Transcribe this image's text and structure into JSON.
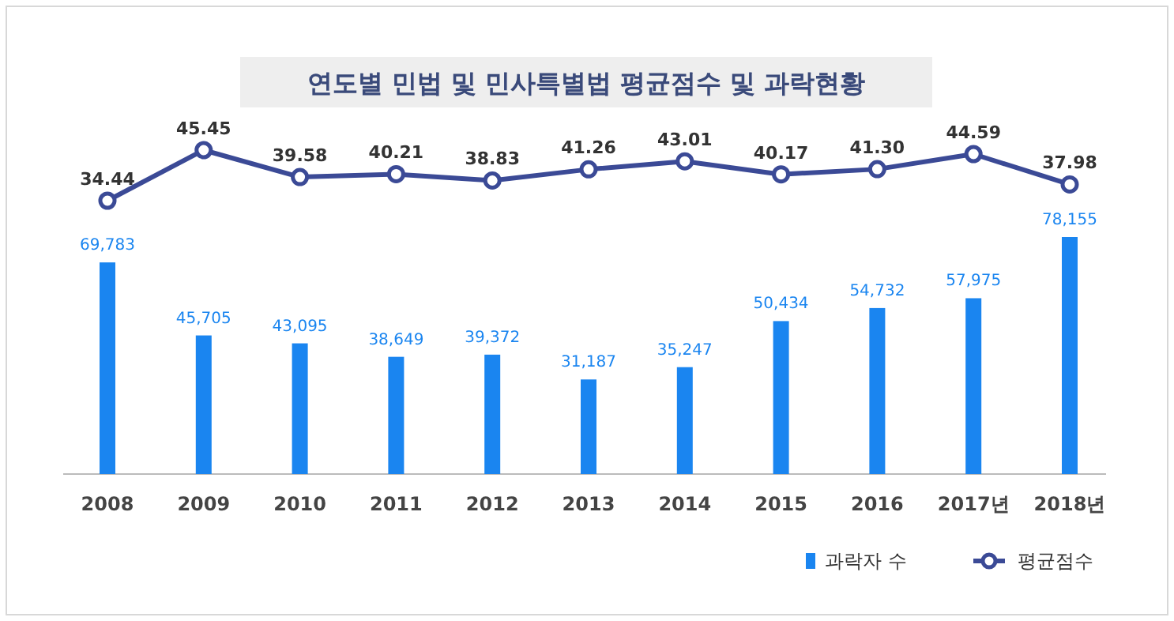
{
  "chart_data": [
    {
      "type": "line",
      "title": "연도별 민법 및 민사특별법 평균점수 및 과락현황",
      "categories": [
        null,
        null,
        null,
        null,
        null,
        null,
        null,
        null,
        null,
        null,
        null
      ],
      "series": [
        {
          "name": "평균점수",
          "color": "#3b4a96",
          "values": [
            34.44,
            45.45,
            39.58,
            40.21,
            38.83,
            41.26,
            43.01,
            40.17,
            41.3,
            44.59,
            37.98
          ],
          "value_labels": [
            "34.44",
            "45.45",
            "39.58",
            "40.21",
            "38.83",
            "41.26",
            "43.01",
            "40.17",
            "41.30",
            "44.59",
            "37.98"
          ]
        }
      ],
      "marker": "circle",
      "tick_labels": false,
      "legend": "bottom right"
    },
    {
      "type": "bar",
      "categories": [
        "2008",
        "2009",
        "2010",
        "2011",
        "2012",
        "2013",
        "2014",
        "2015",
        "2016",
        "2017년",
        "2018년"
      ],
      "series": [
        {
          "name": "과락자 수",
          "color": "#1a85f0",
          "values": [
            69783,
            45705,
            43095,
            38649,
            39372,
            31187,
            35247,
            50434,
            54732,
            57975,
            78155
          ],
          "value_labels": [
            "69,783",
            "45,705",
            "43,095",
            "38,649",
            "39,372",
            "31,187",
            "35,247",
            "50,434",
            "54,732",
            "57,975",
            "78,155"
          ]
        }
      ],
      "legend": "bottom right"
    }
  ]
}
